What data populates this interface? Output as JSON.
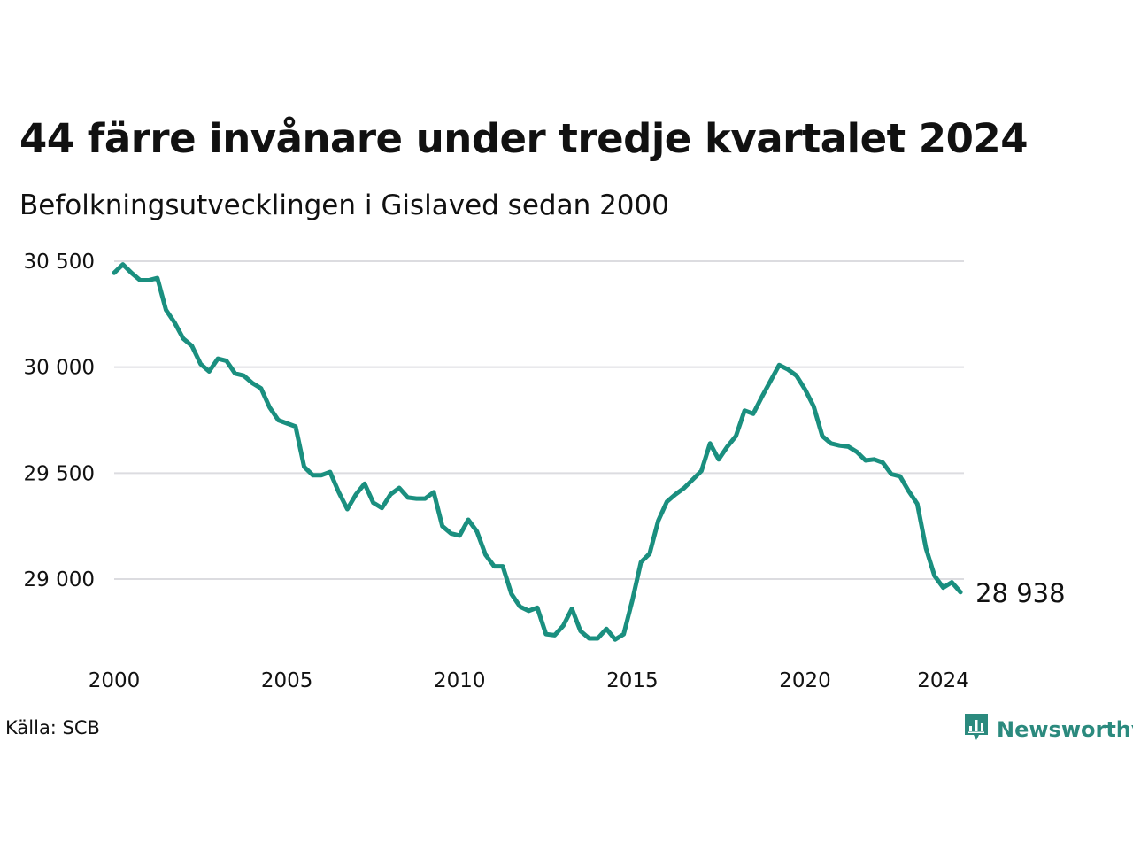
{
  "header": {
    "title": "44 färre invånare under tredje kvartalet 2024",
    "subtitle": "Befolkningsutvecklingen i Gislaved sedan 2000"
  },
  "footer": {
    "source": "Källa: SCB",
    "brand": "Newsworthy"
  },
  "colors": {
    "line": "#1a8f7f",
    "grid": "#dcdce0",
    "brand": "#2b8a7e"
  },
  "chart_data": {
    "type": "line",
    "title": "44 färre invånare under tredje kvartalet 2024",
    "subtitle": "Befolkningsutvecklingen i Gislaved sedan 2000",
    "xlim": [
      2000.0,
      2024.6
    ],
    "ylim": [
      28650,
      30600
    ],
    "y_ticks": [
      29000,
      29500,
      30000,
      30500
    ],
    "y_tick_labels": [
      "29 000",
      "29 500",
      "30 000",
      "30 500"
    ],
    "x_ticks": [
      2000,
      2005,
      2010,
      2015,
      2020,
      2024
    ],
    "x_tick_labels": [
      "2000",
      "2005",
      "2010",
      "2015",
      "2020",
      "2024"
    ],
    "grid": "horizontal",
    "end_label": "28 938",
    "series": [
      {
        "x": [
          2000.0,
          2000.25,
          2000.5,
          2000.75,
          2001.0,
          2001.25,
          2001.5,
          2001.75,
          2002.0,
          2002.25,
          2002.5,
          2002.75,
          2003.0,
          2003.25,
          2003.5,
          2003.75,
          2004.0,
          2004.25,
          2004.5,
          2004.75,
          2005.0,
          2005.25,
          2005.5,
          2005.75,
          2006.0,
          2006.25,
          2006.5,
          2006.75,
          2007.0,
          2007.25,
          2007.5,
          2007.75,
          2008.0,
          2008.25,
          2008.5,
          2008.75,
          2009.0,
          2009.25,
          2009.5,
          2009.75,
          2010.0,
          2010.25,
          2010.5,
          2010.75,
          2011.0,
          2011.25,
          2011.5,
          2011.75,
          2012.0,
          2012.25,
          2012.5,
          2012.75,
          2013.0,
          2013.25,
          2013.5,
          2013.75,
          2014.0,
          2014.25,
          2014.5,
          2014.75,
          2015.0,
          2015.25,
          2015.5,
          2015.75,
          2016.0,
          2016.25,
          2016.5,
          2016.75,
          2017.0,
          2017.25,
          2017.5,
          2017.75,
          2018.0,
          2018.25,
          2018.5,
          2018.75,
          2019.0,
          2019.25,
          2019.5,
          2019.75,
          2020.0,
          2020.25,
          2020.5,
          2020.75,
          2021.0,
          2021.25,
          2021.5,
          2021.75,
          2022.0,
          2022.25,
          2022.5,
          2022.75,
          2023.0,
          2023.25,
          2023.5,
          2023.75,
          2024.0,
          2024.25,
          2024.5
        ],
        "y": [
          30445,
          30485,
          30445,
          30410,
          30410,
          30420,
          30270,
          30210,
          30135,
          30100,
          30015,
          29980,
          30040,
          30030,
          29970,
          29960,
          29925,
          29900,
          29810,
          29750,
          29735,
          29720,
          29530,
          29490,
          29490,
          29505,
          29410,
          29330,
          29400,
          29450,
          29360,
          29335,
          29400,
          29430,
          29385,
          29380,
          29380,
          29410,
          29250,
          29215,
          29205,
          29280,
          29225,
          29115,
          29060,
          29060,
          28930,
          28870,
          28850,
          28865,
          28740,
          28735,
          28780,
          28860,
          28755,
          28720,
          28720,
          28765,
          28715,
          28740,
          28900,
          29080,
          29120,
          29275,
          29365,
          29400,
          29430,
          29470,
          29510,
          29640,
          29565,
          29625,
          29675,
          29795,
          29780,
          29860,
          29935,
          30010,
          29990,
          29960,
          29895,
          29815,
          29675,
          29640,
          29630,
          29625,
          29600,
          29560,
          29565,
          29550,
          29495,
          29485,
          29415,
          29355,
          29145,
          29015,
          28960,
          28985,
          28938
        ]
      }
    ]
  }
}
